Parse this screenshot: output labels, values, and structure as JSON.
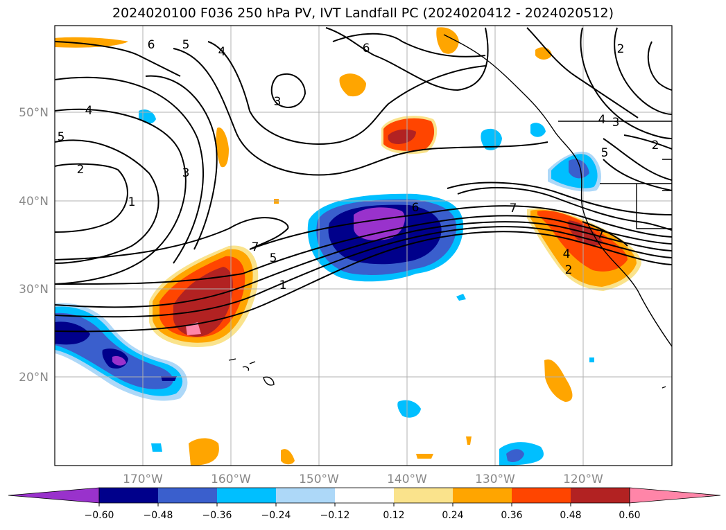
{
  "title": "2024020100 F036 250 hPa PV, IVT Landfall PC (2024020412 - 2024020512)",
  "lat_labels": [
    "50°N",
    "40°N",
    "30°N",
    "20°N"
  ],
  "lon_labels": [
    "170°W",
    "160°W",
    "150°W",
    "140°W",
    "130°W",
    "120°W"
  ],
  "colorbar": {
    "colors": [
      "#9932cc",
      "#00008b",
      "#3a5fcd",
      "#00bfff",
      "#add8f8",
      "#ffffff",
      "#fae38c",
      "#ffa500",
      "#ff4500",
      "#b22222",
      "#ff85a8"
    ],
    "tick_labels": [
      "−0.60",
      "−0.48",
      "−0.36",
      "−0.24",
      "−0.12",
      "0.12",
      "0.24",
      "0.36",
      "0.48",
      "0.60"
    ]
  },
  "contour_labels": [
    "6",
    "5",
    "4",
    "6",
    "3",
    "4",
    "5",
    "2",
    "3",
    "1",
    "7",
    "5",
    "1",
    "6",
    "7",
    "7",
    "4",
    "2",
    "5",
    "4",
    "2",
    "3",
    "2"
  ],
  "colors": {
    "grid": "#b0b0b0",
    "axis_label": "#888888",
    "contour": "#000000"
  }
}
